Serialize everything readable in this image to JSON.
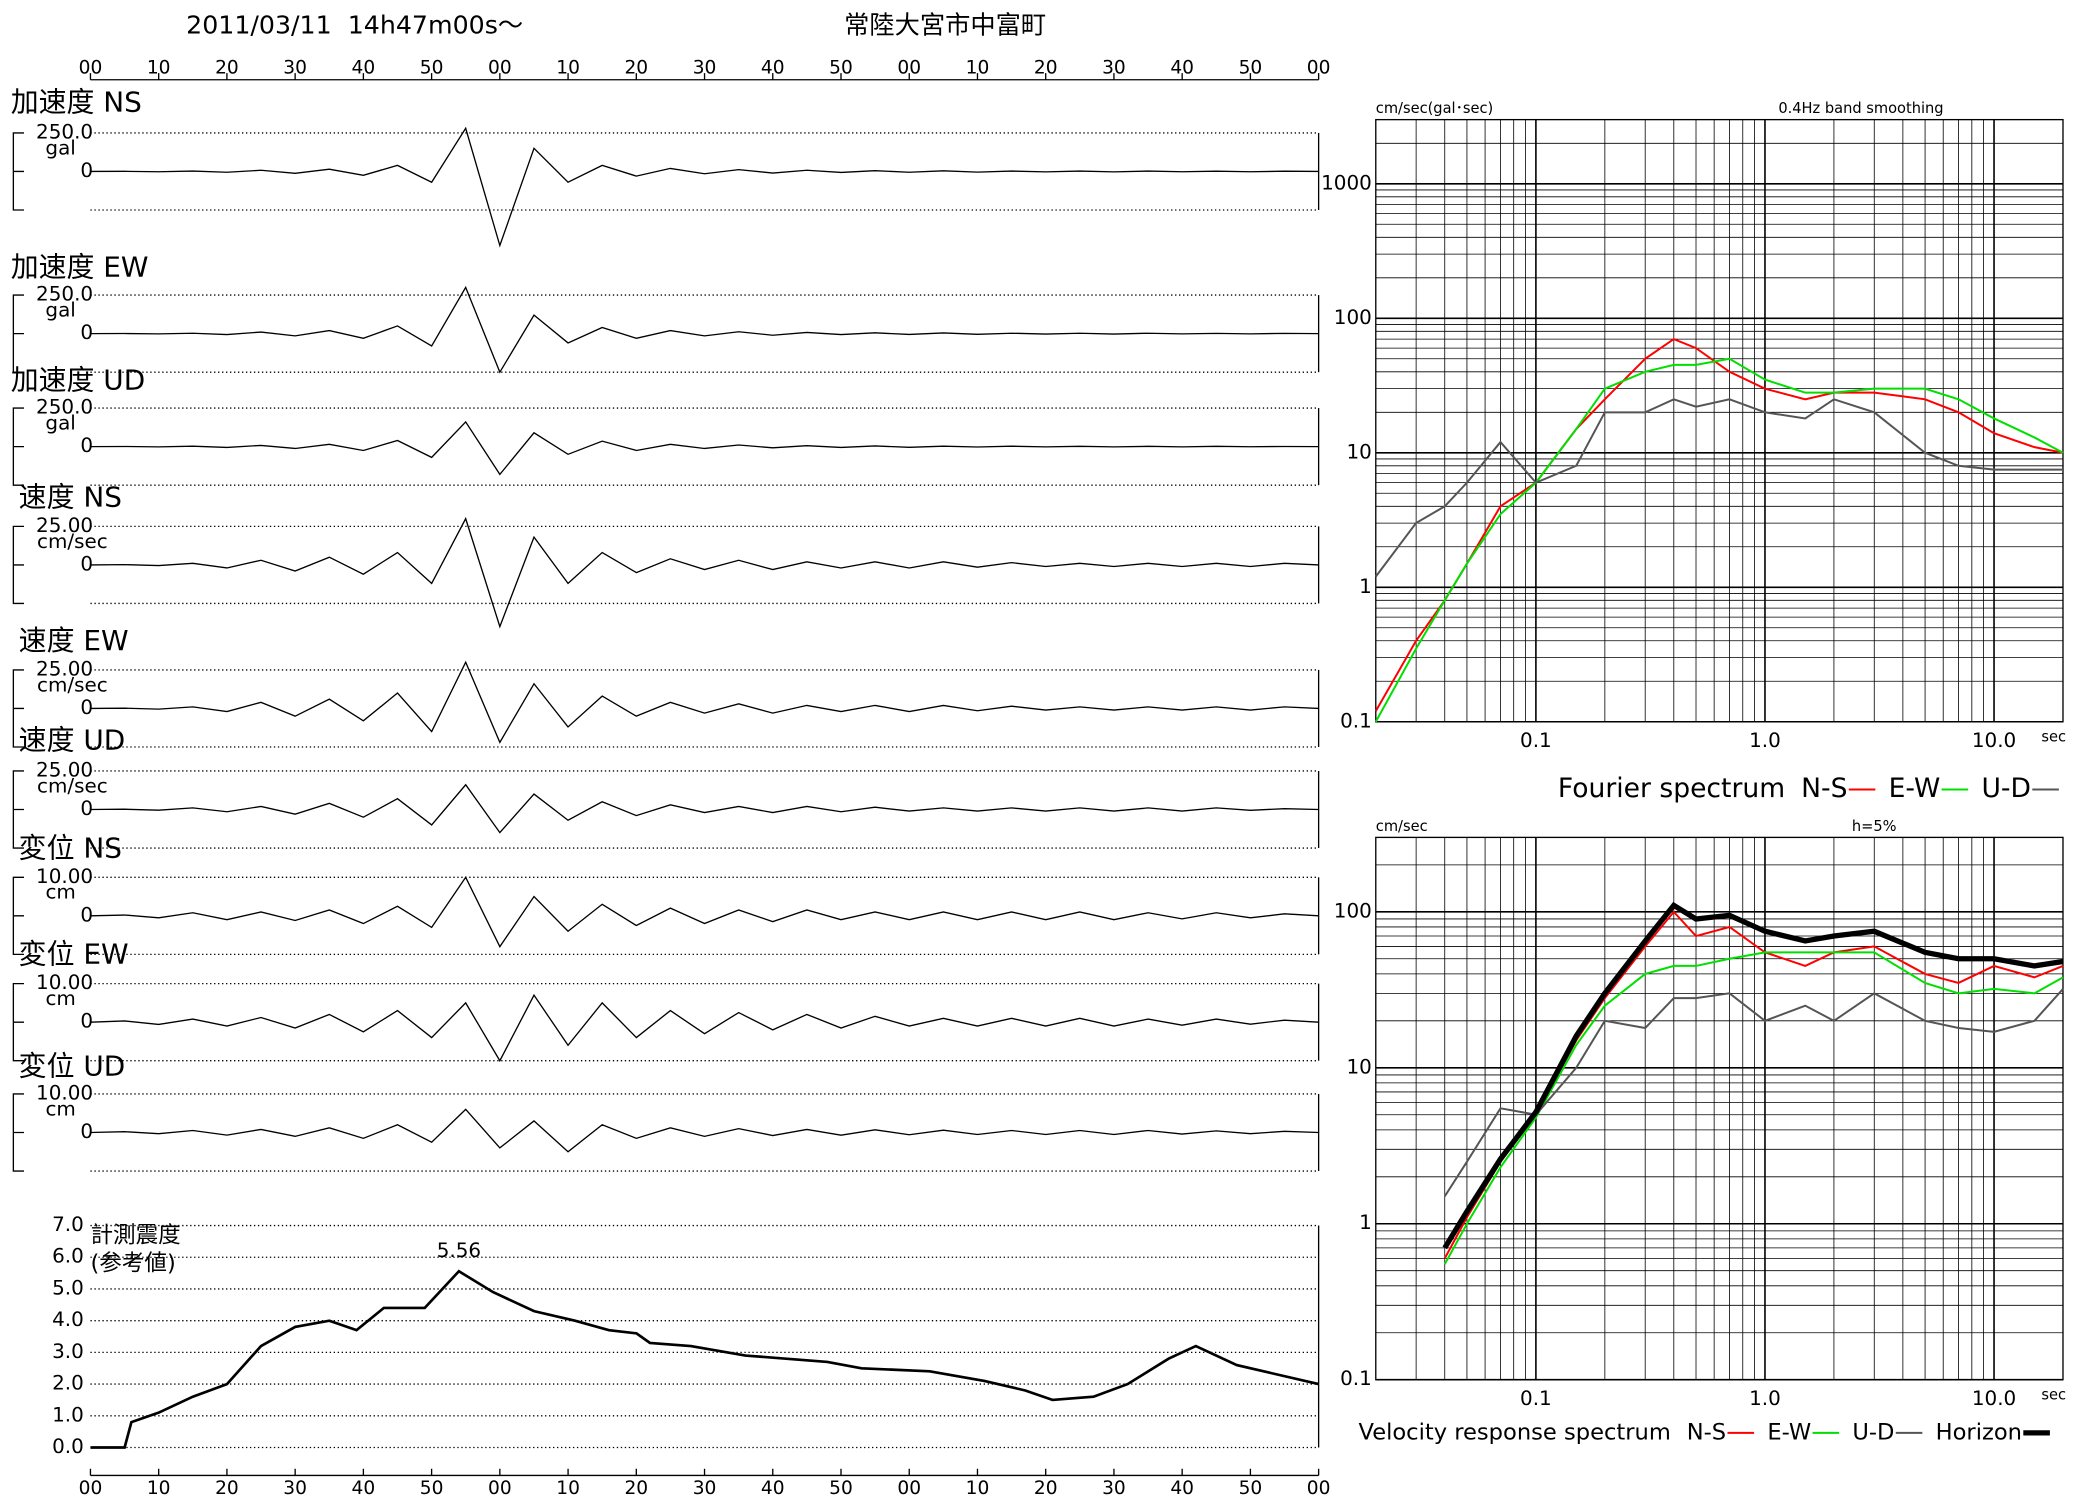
{
  "chart_data": [
    {
      "type": "waveform",
      "title": "2011/03/11  14h47m00s〜",
      "subtitle": "常陸大宮市中富町",
      "xlim": [
        0,
        180
      ],
      "xticks": [
        {
          "value": 0,
          "label": "00"
        },
        {
          "value": 10,
          "label": "10"
        },
        {
          "value": 20,
          "label": "20"
        },
        {
          "value": 30,
          "label": "30"
        },
        {
          "value": 40,
          "label": "40"
        },
        {
          "value": 50,
          "label": "50"
        },
        {
          "value": 60,
          "label": "00"
        },
        {
          "value": 70,
          "label": "10"
        },
        {
          "value": 80,
          "label": "20"
        },
        {
          "value": 90,
          "label": "30"
        },
        {
          "value": 100,
          "label": "40"
        },
        {
          "value": 110,
          "label": "50"
        },
        {
          "value": 120,
          "label": "00"
        },
        {
          "value": 130,
          "label": "10"
        },
        {
          "value": 140,
          "label": "20"
        },
        {
          "value": 150,
          "label": "30"
        },
        {
          "value": 160,
          "label": "40"
        },
        {
          "value": 170,
          "label": "50"
        },
        {
          "value": 180,
          "label": "00"
        }
      ],
      "x": [
        0,
        5,
        10,
        15,
        20,
        25,
        30,
        35,
        40,
        45,
        50,
        55,
        60,
        65,
        70,
        75,
        80,
        85,
        90,
        95,
        100,
        105,
        110,
        115,
        120,
        125,
        130,
        135,
        140,
        145,
        150,
        155,
        160,
        165,
        170,
        175,
        180
      ],
      "panels": [
        {
          "name": "加速度 NS",
          "unit": "gal",
          "ylim": [
            -250,
            250
          ],
          "yticks": [
            {
              "value": 250,
              "label": "250.0"
            },
            0
          ],
          "values": [
            0,
            1,
            -2,
            3,
            -5,
            8,
            -12,
            15,
            -25,
            40,
            -70,
            280,
            -480,
            150,
            -70,
            40,
            -30,
            20,
            -15,
            12,
            -10,
            8,
            -6,
            5,
            -5,
            4,
            -4,
            3,
            -3,
            3,
            -3,
            3,
            -2,
            2,
            -2,
            2,
            0
          ]
        },
        {
          "name": "加速度 EW",
          "unit": "gal",
          "ylim": [
            -250,
            250
          ],
          "yticks": [
            {
              "value": 250,
              "label": "250.0"
            },
            0
          ],
          "values": [
            0,
            1,
            -2,
            3,
            -6,
            10,
            -15,
            20,
            -30,
            50,
            -80,
            300,
            -250,
            120,
            -60,
            40,
            -30,
            20,
            -15,
            12,
            -10,
            8,
            -6,
            5,
            -5,
            4,
            -4,
            3,
            -3,
            3,
            -3,
            3,
            -2,
            2,
            -2,
            2,
            0
          ]
        },
        {
          "name": "加速度 UD",
          "unit": "gal",
          "ylim": [
            -250,
            250
          ],
          "yticks": [
            {
              "value": 250,
              "label": "250.0"
            },
            0
          ],
          "values": [
            0,
            1,
            -2,
            3,
            -5,
            8,
            -12,
            15,
            -25,
            40,
            -70,
            160,
            -180,
            90,
            -50,
            35,
            -25,
            15,
            -12,
            10,
            -8,
            6,
            -5,
            4,
            -4,
            3,
            -3,
            3,
            -2,
            2,
            -2,
            2,
            -2,
            2,
            -1,
            1,
            0
          ]
        },
        {
          "name": "速度 NS",
          "unit": "cm/sec",
          "ylim": [
            -25,
            25
          ],
          "yticks": [
            {
              "value": 25,
              "label": "25.00"
            },
            0
          ],
          "values": [
            0,
            0.2,
            -0.4,
            1,
            -2,
            3,
            -4,
            5,
            -6,
            8,
            -12,
            30,
            -40,
            18,
            -12,
            8,
            -5,
            4,
            -3,
            3,
            -3,
            2,
            -2,
            2,
            -2,
            2,
            -1.5,
            1.5,
            -1,
            1,
            -1,
            1,
            -1,
            1,
            -1,
            1,
            0
          ]
        },
        {
          "name": "速度 EW",
          "unit": "cm/sec",
          "ylim": [
            -25,
            25
          ],
          "yticks": [
            {
              "value": 25,
              "label": "25.00"
            },
            0
          ],
          "values": [
            0,
            0.2,
            -0.4,
            1,
            -2,
            4,
            -5,
            6,
            -8,
            10,
            -15,
            30,
            -22,
            16,
            -12,
            8,
            -5,
            4,
            -3,
            3,
            -3,
            2,
            -2,
            2,
            -2,
            2,
            -1.5,
            1.5,
            -1,
            1,
            -1,
            1,
            -1,
            1,
            -1,
            1,
            0
          ]
        },
        {
          "name": "速度 UD",
          "unit": "cm/sec",
          "ylim": [
            -25,
            25
          ],
          "yticks": [
            {
              "value": 25,
              "label": "25.00"
            },
            0
          ],
          "values": [
            0,
            0.2,
            -0.4,
            1,
            -1.5,
            2,
            -3,
            4,
            -5,
            7,
            -10,
            16,
            -15,
            10,
            -7,
            5,
            -4,
            3,
            -2,
            2,
            -2,
            2,
            -1.5,
            1.5,
            -1,
            1,
            -1,
            1,
            -1,
            1,
            -1,
            1,
            -1,
            1,
            -0.5,
            0.5,
            0
          ]
        },
        {
          "name": "変位 NS",
          "unit": "cm",
          "ylim": [
            -10,
            10
          ],
          "yticks": [
            {
              "value": 10,
              "label": "10.00"
            },
            0
          ],
          "values": [
            0,
            0.2,
            -0.5,
            0.8,
            -1,
            1,
            -1.2,
            1.5,
            -2,
            2.5,
            -3,
            10,
            -8,
            5,
            -4,
            3,
            -2.5,
            2,
            -2,
            1.5,
            -1.5,
            1.5,
            -1,
            1,
            -1,
            1,
            -1,
            1,
            -1,
            1,
            -1,
            0.8,
            -0.8,
            0.8,
            -0.5,
            0.5,
            0
          ]
        },
        {
          "name": "変位 EW",
          "unit": "cm",
          "ylim": [
            -10,
            10
          ],
          "yticks": [
            {
              "value": 10,
              "label": "10.00"
            },
            0
          ],
          "values": [
            0,
            0.3,
            -0.6,
            0.8,
            -1,
            1.2,
            -1.5,
            2,
            -2.5,
            3,
            -4,
            5,
            -10,
            7,
            -6,
            5,
            -4,
            3,
            -3,
            2.5,
            -2,
            2,
            -1.5,
            1.5,
            -1,
            1,
            -1,
            1,
            -1,
            1,
            -1,
            0.8,
            -0.8,
            0.8,
            -0.5,
            0.5,
            0
          ]
        },
        {
          "name": "変位 UD",
          "unit": "cm",
          "ylim": [
            -10,
            10
          ],
          "yticks": [
            {
              "value": 10,
              "label": "10.00"
            },
            0
          ],
          "values": [
            0,
            0.2,
            -0.3,
            0.5,
            -0.7,
            0.8,
            -1,
            1.2,
            -1.5,
            2,
            -2.5,
            6,
            -4,
            3,
            -5,
            2,
            -1.5,
            1.2,
            -1,
            1,
            -0.8,
            0.8,
            -0.7,
            0.7,
            -0.6,
            0.6,
            -0.5,
            0.5,
            -0.5,
            0.5,
            -0.5,
            0.5,
            -0.4,
            0.4,
            -0.3,
            0.3,
            0
          ]
        }
      ]
    },
    {
      "type": "line",
      "ylabel": [
        "計測震度",
        "(参考値)"
      ],
      "xlim": [
        0,
        180
      ],
      "ylim": [
        0,
        7
      ],
      "grid": true,
      "color": "#000000",
      "yticks": [
        {
          "value": 0,
          "label": "0.0"
        },
        {
          "value": 1,
          "label": "1.0"
        },
        {
          "value": 2,
          "label": "2.0"
        },
        {
          "value": 3,
          "label": "3.0"
        },
        {
          "value": 4,
          "label": "4.0"
        },
        {
          "value": 5,
          "label": "5.0"
        },
        {
          "value": 6,
          "label": "6.0"
        },
        {
          "value": 7,
          "label": "7.0"
        }
      ],
      "x": [
        0,
        5,
        6,
        10,
        15,
        20,
        25,
        30,
        35,
        39,
        43,
        49,
        54,
        59,
        65,
        71,
        76,
        80,
        82,
        88,
        96,
        108,
        113,
        123,
        131,
        137,
        141,
        147,
        152,
        158,
        162,
        168,
        180
      ],
      "values": [
        0,
        0,
        0.8,
        1.1,
        1.6,
        2.0,
        3.2,
        3.8,
        4.0,
        3.7,
        4.4,
        4.4,
        5.56,
        4.9,
        4.3,
        4.0,
        3.7,
        3.6,
        3.3,
        3.2,
        2.9,
        2.7,
        2.5,
        2.4,
        2.1,
        1.8,
        1.5,
        1.6,
        2.0,
        2.8,
        3.2,
        2.6,
        2.0
      ],
      "annotations": [
        {
          "x": 54,
          "y": 5.56,
          "label": "5.56"
        }
      ]
    },
    {
      "type": "loglog",
      "title": "Fourier spectrum",
      "ylabel": "cm/sec(gal･sec)",
      "note": "0.4Hz band smoothing",
      "xlabel": "sec",
      "log_scale": true,
      "grid": true,
      "xlim": [
        0.02,
        20
      ],
      "ylim": [
        0.1,
        3000
      ],
      "xticks": [
        0.1,
        {
          "value": 1,
          "label": "1.0"
        },
        {
          "value": 10,
          "label": "10.0"
        }
      ],
      "yticks": [
        0.1,
        1,
        10,
        100,
        1000
      ],
      "x": [
        0.02,
        0.03,
        0.04,
        0.05,
        0.07,
        0.1,
        0.15,
        0.2,
        0.3,
        0.4,
        0.5,
        0.7,
        1,
        1.5,
        2,
        3,
        5,
        7,
        10,
        15,
        20
      ],
      "series": [
        {
          "name": "N-S",
          "color": "#ff0000",
          "values": [
            0.12,
            0.4,
            0.8,
            1.5,
            4,
            6,
            15,
            25,
            50,
            70,
            60,
            40,
            30,
            25,
            28,
            28,
            25,
            20,
            14,
            11,
            10
          ]
        },
        {
          "name": "E-W",
          "color": "#00e000",
          "values": [
            0.1,
            0.35,
            0.8,
            1.5,
            3.5,
            6,
            15,
            30,
            40,
            45,
            45,
            50,
            35,
            28,
            28,
            30,
            30,
            25,
            18,
            13,
            10
          ]
        },
        {
          "name": "U-D",
          "color": "#555555",
          "values": [
            1.2,
            3,
            4,
            6,
            12,
            6,
            8,
            20,
            20,
            25,
            22,
            25,
            20,
            18,
            25,
            20,
            10,
            8,
            7.5,
            7.5,
            7.5
          ]
        }
      ]
    },
    {
      "type": "loglog",
      "title": "Velocity response spectrum",
      "ylabel": "cm/sec",
      "note": "h=5%",
      "xlabel": "sec",
      "log_scale": true,
      "grid": true,
      "xlim": [
        0.02,
        20
      ],
      "ylim": [
        0.1,
        300
      ],
      "xticks": [
        0.1,
        {
          "value": 1,
          "label": "1.0"
        },
        {
          "value": 10,
          "label": "10.0"
        }
      ],
      "yticks": [
        0.1,
        1,
        10,
        100
      ],
      "x": [
        0.04,
        0.05,
        0.07,
        0.1,
        0.15,
        0.2,
        0.3,
        0.4,
        0.5,
        0.7,
        1,
        1.5,
        2,
        3,
        5,
        7,
        10,
        15,
        20
      ],
      "series": [
        {
          "name": "N-S",
          "color": "#ff0000",
          "values": [
            0.6,
            1.1,
            2.5,
            5,
            15,
            28,
            60,
            100,
            70,
            80,
            55,
            45,
            55,
            60,
            40,
            35,
            45,
            38,
            45
          ]
        },
        {
          "name": "E-W",
          "color": "#00e000",
          "values": [
            0.55,
            1.0,
            2.3,
            4.8,
            14,
            25,
            40,
            45,
            45,
            50,
            55,
            55,
            55,
            55,
            35,
            30,
            32,
            30,
            38
          ]
        },
        {
          "name": "U-D",
          "color": "#555555",
          "values": [
            1.5,
            2.5,
            5.5,
            5,
            10,
            20,
            18,
            28,
            28,
            30,
            20,
            25,
            20,
            30,
            20,
            18,
            17,
            20,
            32
          ]
        },
        {
          "name": "Horizon",
          "color": "#000000",
          "values": [
            0.7,
            1.2,
            2.6,
            5.2,
            16,
            30,
            65,
            110,
            90,
            95,
            75,
            65,
            70,
            75,
            55,
            50,
            50,
            45,
            48
          ]
        }
      ]
    }
  ]
}
